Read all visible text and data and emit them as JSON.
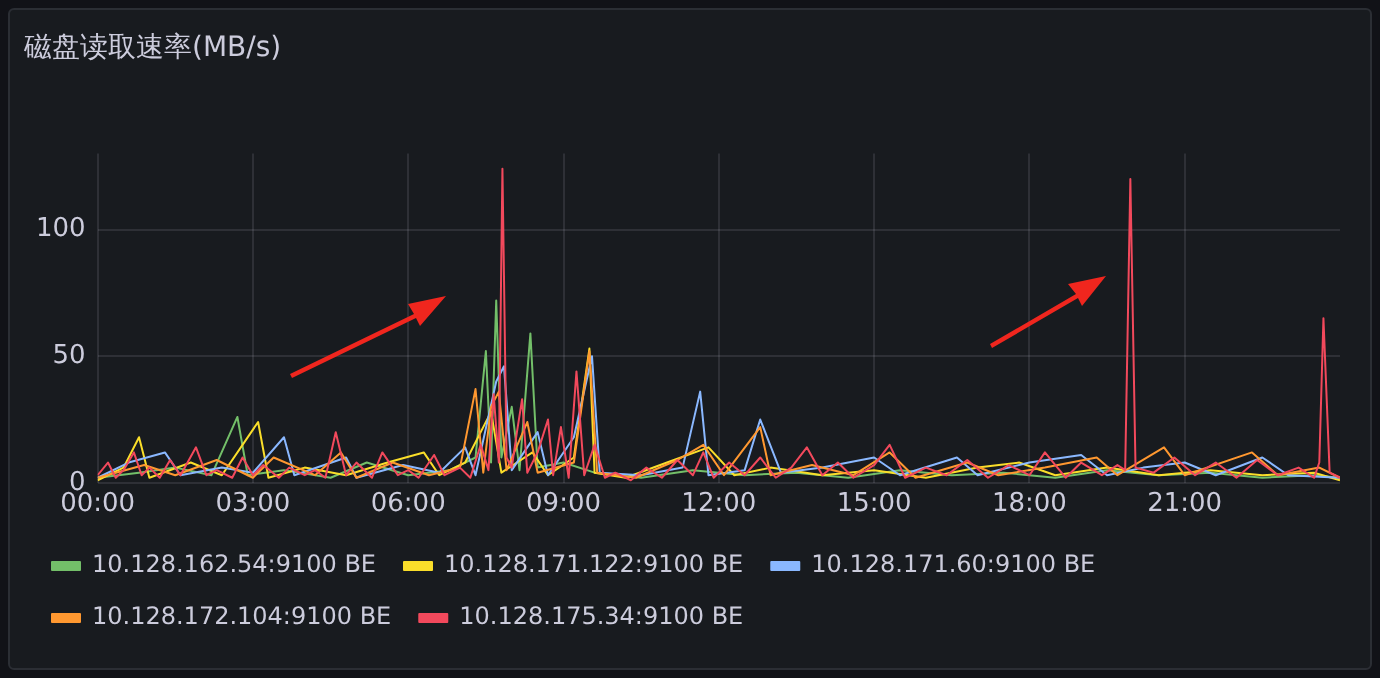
{
  "chart_data": {
    "type": "line",
    "title": "磁盘读取速率(MB/s)",
    "xlim": [
      0,
      24
    ],
    "xticks": [
      {
        "value": 0,
        "label": "00:00"
      },
      {
        "value": 3,
        "label": "03:00"
      },
      {
        "value": 6,
        "label": "06:00"
      },
      {
        "value": 9,
        "label": "09:00"
      },
      {
        "value": 12,
        "label": "12:00"
      },
      {
        "value": 15,
        "label": "15:00"
      },
      {
        "value": 18,
        "label": "18:00"
      },
      {
        "value": 21,
        "label": "21:00"
      }
    ],
    "ylim": [
      0,
      130
    ],
    "yticks": [
      0,
      50,
      100
    ],
    "grid": true,
    "legend": "bottom",
    "marker": "none",
    "series": [
      {
        "name": "10.128.162.54:9100 BE",
        "color": "#73bf69",
        "x": [
          0,
          0.8,
          1.5,
          2.2,
          2.7,
          2.9,
          3.6,
          4.5,
          5.2,
          6.0,
          6.8,
          7.3,
          7.5,
          7.6,
          7.7,
          7.8,
          8.0,
          8.15,
          8.36,
          8.5,
          9.0,
          9.6,
          10.5,
          11.5,
          12.5,
          13.5,
          14.5,
          15.5,
          16.5,
          17.5,
          18.5,
          19.5,
          20.5,
          21.5,
          22.5,
          23.5,
          24
        ],
        "values": [
          2,
          4,
          6,
          3,
          26,
          3,
          5,
          2,
          8,
          3,
          5,
          10,
          52,
          8,
          72,
          10,
          30,
          5,
          59,
          6,
          8,
          4,
          2,
          5,
          3,
          4,
          2,
          5,
          3,
          4,
          2,
          5,
          3,
          4,
          2,
          3,
          2
        ]
      },
      {
        "name": "10.128.171.122:9100 BE",
        "color": "#fade2a",
        "x": [
          0,
          0.5,
          0.8,
          1.0,
          1.8,
          2.4,
          3.1,
          3.3,
          4.0,
          4.8,
          5.6,
          6.3,
          6.6,
          7.1,
          7.6,
          7.8,
          8.4,
          8.7,
          9.2,
          9.5,
          9.6,
          10.2,
          11.0,
          11.8,
          12.3,
          13.0,
          14.0,
          15.0,
          16.0,
          17.0,
          17.8,
          18.5,
          19.5,
          20.5,
          21.5,
          22.5,
          23.5,
          24
        ],
        "values": [
          1,
          6,
          18,
          2,
          8,
          3,
          24,
          2,
          6,
          3,
          8,
          12,
          3,
          8,
          28,
          4,
          12,
          3,
          10,
          53,
          4,
          2,
          8,
          14,
          3,
          6,
          3,
          5,
          2,
          6,
          8,
          3,
          6,
          3,
          5,
          3,
          4,
          1
        ]
      },
      {
        "name": "10.128.171.60:9100 BE",
        "color": "#8ab8ff",
        "x": [
          0,
          0.6,
          1.3,
          1.6,
          2.4,
          3.0,
          3.6,
          3.8,
          4.8,
          5.0,
          5.9,
          6.6,
          7.1,
          7.3,
          7.7,
          7.85,
          8.0,
          8.5,
          8.7,
          9.2,
          9.55,
          9.7,
          10.5,
          11.3,
          11.64,
          11.8,
          12.5,
          12.8,
          13.2,
          14.0,
          15.0,
          15.5,
          16.6,
          17.0,
          18.0,
          19.0,
          19.5,
          20.2,
          21.0,
          21.6,
          22.5,
          23.0,
          24
        ],
        "values": [
          2,
          8,
          12,
          3,
          6,
          4,
          18,
          3,
          10,
          2,
          7,
          4,
          14,
          3,
          40,
          46,
          5,
          20,
          3,
          18,
          50,
          4,
          3,
          6,
          36,
          3,
          5,
          25,
          4,
          6,
          10,
          3,
          10,
          3,
          8,
          11,
          3,
          6,
          8,
          3,
          10,
          3,
          2
        ]
      },
      {
        "name": "10.128.172.104:9100 BE",
        "color": "#ff9830",
        "x": [
          0,
          0.9,
          1.5,
          2.3,
          3.0,
          3.4,
          4.2,
          4.7,
          5.0,
          5.7,
          6.4,
          7.0,
          7.3,
          7.45,
          7.6,
          7.75,
          7.9,
          8.3,
          8.5,
          9.2,
          9.5,
          9.65,
          10.4,
          11.2,
          11.7,
          12.1,
          12.8,
          13.0,
          13.8,
          14.6,
          15.3,
          15.8,
          16.8,
          17.4,
          18.3,
          19.3,
          19.7,
          20.6,
          21.0,
          22.3,
          22.8,
          23.6,
          24
        ],
        "values": [
          2,
          7,
          3,
          9,
          2,
          10,
          3,
          12,
          2,
          8,
          3,
          6,
          37,
          4,
          30,
          36,
          5,
          24,
          4,
          8,
          52,
          4,
          2,
          9,
          15,
          3,
          22,
          3,
          7,
          3,
          12,
          2,
          8,
          3,
          6,
          10,
          3,
          14,
          3,
          12,
          3,
          6,
          2
        ]
      },
      {
        "name": "10.128.175.34:9100 BE",
        "color": "#f2495c",
        "x": [
          0,
          0.2,
          0.35,
          0.5,
          0.7,
          0.85,
          1.0,
          1.2,
          1.4,
          1.6,
          1.9,
          2.1,
          2.3,
          2.6,
          2.8,
          3.0,
          3.2,
          3.5,
          3.7,
          4.0,
          4.2,
          4.4,
          4.6,
          4.8,
          5.0,
          5.3,
          5.5,
          5.8,
          6.0,
          6.2,
          6.5,
          6.7,
          7.0,
          7.2,
          7.4,
          7.55,
          7.65,
          7.75,
          7.82,
          7.9,
          8.0,
          8.1,
          8.2,
          8.3,
          8.5,
          8.7,
          8.8,
          8.95,
          9.1,
          9.25,
          9.4,
          9.6,
          9.8,
          10.0,
          10.3,
          10.6,
          10.9,
          11.2,
          11.5,
          11.7,
          11.9,
          12.2,
          12.5,
          12.8,
          13.1,
          13.4,
          13.7,
          14.0,
          14.3,
          14.6,
          15.0,
          15.3,
          15.6,
          16.0,
          16.4,
          16.8,
          17.2,
          17.6,
          18.0,
          18.3,
          18.7,
          19.0,
          19.4,
          19.7,
          19.85,
          19.95,
          20.05,
          20.4,
          20.8,
          21.2,
          21.6,
          22.0,
          22.4,
          22.8,
          23.2,
          23.5,
          23.6,
          23.68,
          23.8,
          24
        ],
        "values": [
          3,
          8,
          2,
          5,
          12,
          3,
          6,
          2,
          9,
          3,
          14,
          3,
          5,
          2,
          10,
          3,
          7,
          2,
          6,
          3,
          5,
          2,
          20,
          3,
          8,
          2,
          12,
          3,
          5,
          2,
          11,
          3,
          6,
          2,
          15,
          5,
          35,
          8,
          124,
          10,
          6,
          20,
          33,
          4,
          12,
          25,
          3,
          22,
          2,
          44,
          3,
          15,
          2,
          4,
          1,
          6,
          2,
          9,
          3,
          12,
          2,
          8,
          3,
          10,
          2,
          6,
          14,
          3,
          8,
          2,
          7,
          15,
          2,
          6,
          3,
          9,
          2,
          7,
          3,
          12,
          2,
          8,
          3,
          7,
          5,
          120,
          6,
          4,
          10,
          3,
          8,
          2,
          9,
          3,
          6,
          2,
          8,
          65,
          4,
          2
        ]
      }
    ]
  }
}
